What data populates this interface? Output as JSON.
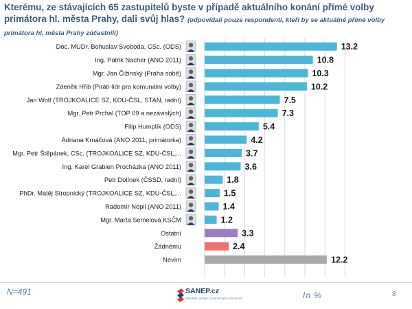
{
  "header": {
    "title": "Kterému, ze stávajících 65 zastupitelů byste v případě aktuálního konání přímé volby primátora hl. města Prahy, dali svůj hlas?",
    "note": "(odpovídali pouze respondenti, kteří by se aktuálně přímé volby primátora hl. města Prahy zúčastnili)"
  },
  "footer": {
    "sample": "N=491",
    "unit": "In %",
    "page": "8",
    "logo_name": "SANEP.cz",
    "logo_tagline": "Středisko analýz a empirických průzkumů"
  },
  "colors": {
    "candidate": "#4db6d8",
    "ostatni": "#9b7fc0",
    "zadnemu": "#f07171",
    "nevim": "#a9a9a9",
    "grid": "#d9d9d9"
  },
  "chart_data": {
    "type": "bar",
    "orientation": "horizontal",
    "xlim": [
      0,
      14
    ],
    "grid": true,
    "categories": [
      "Doc. MUDr. Bohuslav Svoboda, CSc. (ODS)",
      "Ing. Patrik Nacher (ANO 2011)",
      "Mgr. Jan Čižinský (Praha sobě)",
      "Zdeněk Hřib (Piráti-lídr pro komunální volby)",
      "Jan Wolf (TROJKOALICE SZ, KDU-ČSL, STAN, radní)",
      "Mgr. Petr Prchal (TOP 09 a nezávislých)",
      "Filip Humplík (ODS)",
      "Adriana Krnáčová (ANO 2011, primátorka)",
      "Mgr. Petr Štěpánek, CSc. (TROJKOALICE SZ, KDU-ČSL,...",
      "Ing. Karel Grabien Procházka (ANO 2011)",
      "Petr Dolínek (ČSSD, radní)",
      "PhDr. Matěj Stropnický (TROJKOALICE SZ, KDU-ČSL,...",
      "Radomír Nepil (ANO 2011)",
      "Mgr. Marta Semelová KSČM",
      "Ostatní",
      "Žádnému",
      "Nevím"
    ],
    "values": [
      13.2,
      10.8,
      10.3,
      10.2,
      7.5,
      7.3,
      5.4,
      4.2,
      3.7,
      3.6,
      1.8,
      1.5,
      1.4,
      1.2,
      3.3,
      2.4,
      12.2
    ],
    "value_labels": [
      "13.2",
      "10.8",
      "10.3",
      "10.2",
      "7.5",
      "7.3",
      "5.4",
      "4.2",
      "3.7",
      "3.6",
      "1.8",
      "1.5",
      "1.4",
      "1.2",
      "3.3",
      "2.4",
      "12.2"
    ],
    "bar_color_keys": [
      "candidate",
      "candidate",
      "candidate",
      "candidate",
      "candidate",
      "candidate",
      "candidate",
      "candidate",
      "candidate",
      "candidate",
      "candidate",
      "candidate",
      "candidate",
      "candidate",
      "ostatni",
      "zadnemu",
      "nevim"
    ],
    "photo_icon": "portrait-photo-icon"
  }
}
